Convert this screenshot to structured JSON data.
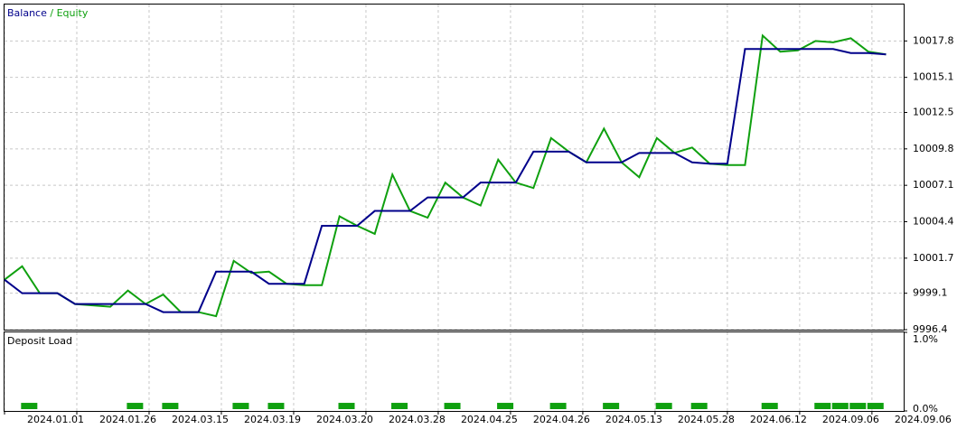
{
  "chart_data": [
    {
      "type": "line",
      "legend_separator": "/",
      "xlim": [
        0,
        51
      ],
      "xticks": [
        {
          "value": 0,
          "label": "2024.01.01"
        },
        {
          "value": 4.1,
          "label": "2024.01.26"
        },
        {
          "value": 8.2,
          "label": "2024.03.15"
        },
        {
          "value": 12.3,
          "label": "2024.03.19"
        },
        {
          "value": 16.4,
          "label": "2024.03.20"
        },
        {
          "value": 20.5,
          "label": "2024.03.28"
        },
        {
          "value": 24.6,
          "label": "2024.04.25"
        },
        {
          "value": 28.7,
          "label": "2024.04.26"
        },
        {
          "value": 32.8,
          "label": "2024.05.13"
        },
        {
          "value": 36.9,
          "label": "2024.05.28"
        },
        {
          "value": 41.0,
          "label": "2024.06.12"
        },
        {
          "value": 45.1,
          "label": "2024.09.06"
        },
        {
          "value": 49.2,
          "label": "2024.09.06"
        }
      ],
      "ylim": [
        9996.4,
        10020.5
      ],
      "yticks": [
        9996.4,
        9999.1,
        10001.7,
        10004.4,
        10007.1,
        10009.8,
        10012.5,
        10015.1,
        10017.8
      ],
      "grid": true,
      "series": [
        {
          "name": "Balance",
          "color": "#00008b",
          "values": [
            10000.1,
            9999.1,
            9999.1,
            9999.1,
            9998.3,
            9998.3,
            9998.3,
            9998.3,
            9998.3,
            9997.7,
            9997.7,
            9997.7,
            10000.7,
            10000.7,
            10000.7,
            9999.8,
            9999.8,
            9999.8,
            10004.1,
            10004.1,
            10004.1,
            10005.2,
            10005.2,
            10005.2,
            10006.2,
            10006.2,
            10006.2,
            10007.3,
            10007.3,
            10007.3,
            10009.6,
            10009.6,
            10009.6,
            10008.8,
            10008.8,
            10008.8,
            10009.5,
            10009.5,
            10009.5,
            10008.8,
            10008.7,
            10008.7,
            10017.2,
            10017.2,
            10017.2,
            10017.2,
            10017.2,
            10017.2,
            10016.9,
            10016.9,
            10016.8
          ]
        },
        {
          "name": "Equity",
          "color": "#0fa00f",
          "values": [
            10000.1,
            10001.1,
            9999.1,
            9999.1,
            9998.3,
            9998.2,
            9998.1,
            9999.3,
            9998.3,
            9999.0,
            9997.7,
            9997.7,
            9997.4,
            10001.5,
            10000.6,
            10000.7,
            9999.8,
            9999.7,
            9999.7,
            10004.8,
            10004.1,
            10003.5,
            10007.9,
            10005.2,
            10004.7,
            10007.3,
            10006.2,
            10005.6,
            10009.0,
            10007.3,
            10006.9,
            10010.6,
            10009.6,
            10008.8,
            10011.3,
            10008.8,
            10007.7,
            10010.6,
            10009.5,
            10009.9,
            10008.7,
            10008.6,
            10008.6,
            10018.2,
            10017.0,
            10017.1,
            10017.8,
            10017.7,
            10018.0,
            10017.0,
            10016.8
          ]
        }
      ]
    },
    {
      "type": "bar",
      "title": "Deposit Load",
      "color": "#0fa00f",
      "xlim": [
        0,
        51
      ],
      "x": [
        1.4,
        7.4,
        9.4,
        13.4,
        15.4,
        19.4,
        22.4,
        25.4,
        28.4,
        31.4,
        34.4,
        37.4,
        39.4,
        43.4,
        46.4,
        47.4,
        48.4,
        49.4
      ],
      "values": [
        0.08,
        0.08,
        0.08,
        0.08,
        0.08,
        0.08,
        0.08,
        0.08,
        0.08,
        0.08,
        0.08,
        0.08,
        0.08,
        0.08,
        0.08,
        0.08,
        0.08,
        0.08
      ],
      "ylim": [
        0,
        1
      ],
      "yticks": [
        {
          "value": 0,
          "label": "0.0%"
        },
        {
          "value": 1,
          "label": "1.0%"
        }
      ]
    }
  ]
}
